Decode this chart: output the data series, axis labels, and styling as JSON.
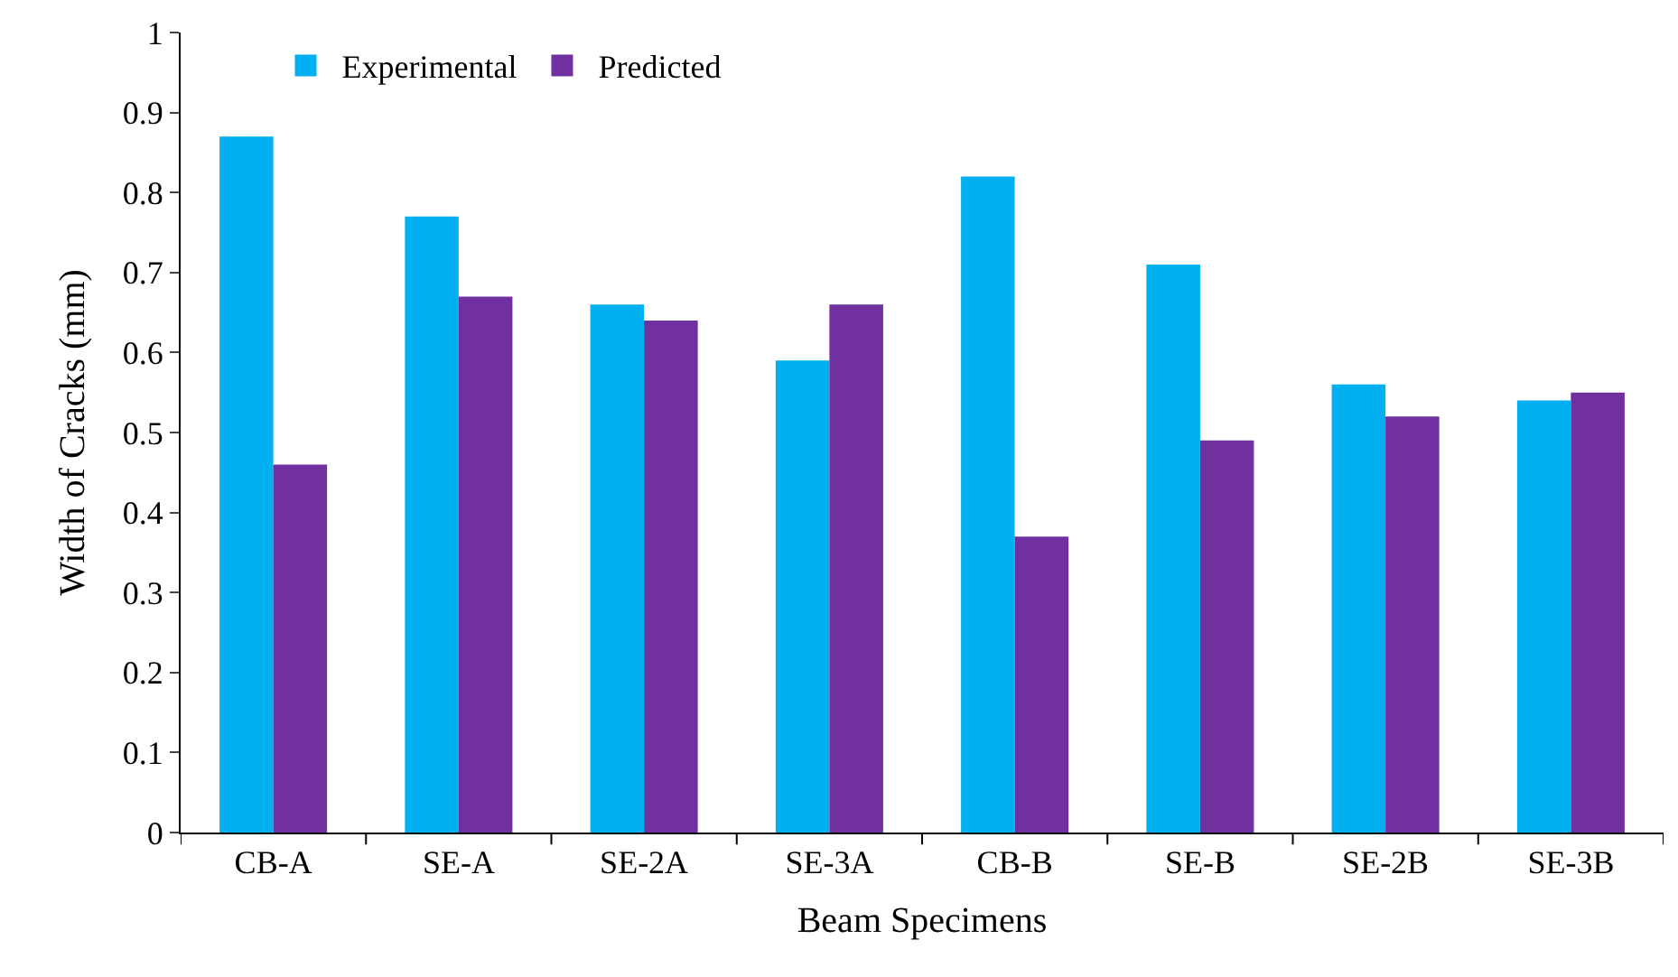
{
  "chart_data": {
    "type": "bar",
    "xlabel": "Beam Specimens",
    "ylabel": "Width of Cracks (mm)",
    "categories": [
      "CB-A",
      "SE-A",
      "SE-2A",
      "SE-3A",
      "CB-B",
      "SE-B",
      "SE-2B",
      "SE-3B"
    ],
    "series": [
      {
        "name": "Experimental",
        "color": "#00b0f0",
        "values": [
          0.87,
          0.77,
          0.66,
          0.59,
          0.82,
          0.71,
          0.56,
          0.54
        ]
      },
      {
        "name": "Predicted",
        "color": "#7030a0",
        "values": [
          0.46,
          0.67,
          0.64,
          0.66,
          0.37,
          0.49,
          0.52,
          0.55
        ]
      }
    ],
    "ylim": [
      0,
      1
    ],
    "yticks": [
      0,
      0.1,
      0.2,
      0.3,
      0.4,
      0.5,
      0.6,
      0.7,
      0.8,
      0.9,
      1
    ],
    "legend": "top left"
  }
}
